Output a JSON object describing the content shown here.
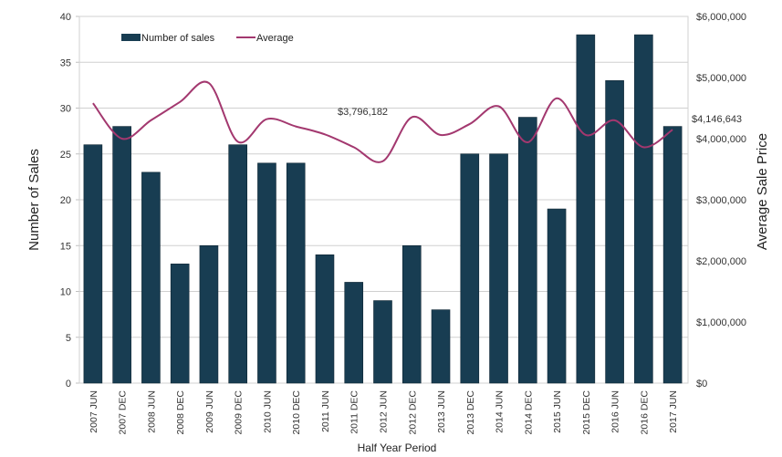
{
  "chart_data": {
    "type": "bar",
    "title": "",
    "xlabel": "Half Year Period",
    "ylabel": "Number of Sales",
    "y2label": "Average Sale Price",
    "ylim": [
      0,
      40
    ],
    "y2lim": [
      0,
      6000000
    ],
    "yticks": [
      "0",
      "5",
      "10",
      "15",
      "20",
      "25",
      "30",
      "35",
      "40"
    ],
    "y2ticks": [
      "$0",
      "$1,000,000",
      "$2,000,000",
      "$3,000,000",
      "$4,000,000",
      "$5,000,000",
      "$6,000,000"
    ],
    "grid": true,
    "legend_position": "top-left",
    "categories": [
      "2007 JUN",
      "2007 DEC",
      "2008 JUN",
      "2008 DEC",
      "2009 JUN",
      "2009 DEC",
      "2010 JUN",
      "2010 DEC",
      "2011 JUN",
      "2011 DEC",
      "2012 JUN",
      "2012 DEC",
      "2013 JUN",
      "2013 DEC",
      "2014 JUN",
      "2014 DEC",
      "2015 JUN",
      "2015 DEC",
      "2016 JUN",
      "2016 DEC",
      "2017 JUN"
    ],
    "series": [
      {
        "name": "Number of sales",
        "type": "bar",
        "axis": "left",
        "color": "#183d52",
        "values": [
          26,
          28,
          23,
          13,
          15,
          26,
          24,
          24,
          14,
          11,
          9,
          15,
          8,
          25,
          25,
          29,
          19,
          38,
          33,
          38,
          28
        ]
      },
      {
        "name": "Average",
        "type": "line",
        "axis": "right",
        "color": "#a3386f",
        "values": [
          4580000,
          4000000,
          4300000,
          4600000,
          4910000,
          3950000,
          4320000,
          4200000,
          4070000,
          3860000,
          3630000,
          4350000,
          4060000,
          4240000,
          4530000,
          3940000,
          4660000,
          4060000,
          4300000,
          3860000,
          4146643
        ]
      }
    ],
    "annotations": [
      {
        "text": "$3,796,182",
        "near_category": "2011 JUN"
      },
      {
        "text": "$4,146,643",
        "near_category": "2017 JUN"
      }
    ]
  }
}
